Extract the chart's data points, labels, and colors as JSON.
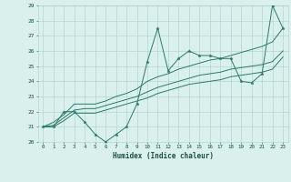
{
  "x": [
    0,
    1,
    2,
    3,
    4,
    5,
    6,
    7,
    8,
    9,
    10,
    11,
    12,
    13,
    14,
    15,
    16,
    17,
    18,
    19,
    20,
    21,
    22,
    23
  ],
  "line1": [
    21,
    21,
    22,
    22,
    21.3,
    20.5,
    20,
    20.5,
    21,
    22.5,
    25.3,
    27.5,
    24.7,
    25.5,
    26,
    25.7,
    25.7,
    25.5,
    25.5,
    24,
    23.9,
    24.5,
    29,
    27.5
  ],
  "line2_upper": [
    21,
    21.3,
    21.8,
    22.5,
    22.5,
    22.5,
    22.7,
    23.0,
    23.2,
    23.5,
    24.0,
    24.3,
    24.5,
    24.8,
    25.0,
    25.2,
    25.4,
    25.5,
    25.7,
    25.9,
    26.1,
    26.3,
    26.6,
    27.5
  ],
  "line2_mid": [
    21,
    21.1,
    21.6,
    22.1,
    22.2,
    22.2,
    22.4,
    22.6,
    22.8,
    23.0,
    23.3,
    23.6,
    23.8,
    24.0,
    24.2,
    24.4,
    24.5,
    24.6,
    24.8,
    24.9,
    25.0,
    25.1,
    25.3,
    26.0
  ],
  "line2_lower": [
    21,
    21.0,
    21.4,
    21.9,
    21.9,
    21.9,
    22.1,
    22.3,
    22.5,
    22.7,
    22.9,
    23.2,
    23.4,
    23.6,
    23.8,
    23.9,
    24.0,
    24.1,
    24.3,
    24.4,
    24.5,
    24.6,
    24.8,
    25.6
  ],
  "line_color": "#2a7a6a",
  "bg_color": "#daf0ec",
  "grid_color": "#aacfca",
  "xlabel": "Humidex (Indice chaleur)",
  "ylim": [
    20,
    29
  ],
  "xlim": [
    -0.5,
    23.5
  ],
  "yticks": [
    20,
    21,
    22,
    23,
    24,
    25,
    26,
    27,
    28,
    29
  ],
  "xticks": [
    0,
    1,
    2,
    3,
    4,
    5,
    6,
    7,
    8,
    9,
    10,
    11,
    12,
    13,
    14,
    15,
    16,
    17,
    18,
    19,
    20,
    21,
    22,
    23
  ]
}
